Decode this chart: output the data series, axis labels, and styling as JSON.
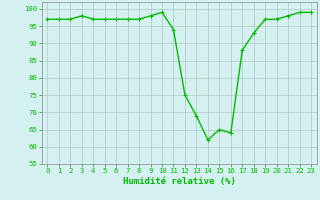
{
  "x": [
    0,
    1,
    2,
    3,
    4,
    5,
    6,
    7,
    8,
    9,
    10,
    11,
    12,
    13,
    14,
    15,
    16,
    17,
    18,
    19,
    20,
    21,
    22,
    23
  ],
  "y": [
    97,
    97,
    97,
    98,
    97,
    97,
    97,
    97,
    97,
    98,
    99,
    94,
    75,
    69,
    62,
    65,
    64,
    88,
    93,
    97,
    97,
    98,
    99,
    99
  ],
  "line_color": "#00bb00",
  "marker": "+",
  "marker_color": "#00bb00",
  "bg_color": "#d4f0f0",
  "grid_color": "#b0c8c8",
  "tick_color": "#00bb00",
  "xlabel": "Humidité relative (%)",
  "xlabel_color": "#00bb00",
  "ylim": [
    55,
    102
  ],
  "xlim": [
    -0.5,
    23.5
  ],
  "yticks": [
    55,
    60,
    65,
    70,
    75,
    80,
    85,
    90,
    95,
    100
  ],
  "xticks": [
    0,
    1,
    2,
    3,
    4,
    5,
    6,
    7,
    8,
    9,
    10,
    11,
    12,
    13,
    14,
    15,
    16,
    17,
    18,
    19,
    20,
    21,
    22,
    23
  ],
  "tick_fontsize": 5.2,
  "xlabel_fontsize": 6.5,
  "linewidth": 1.0,
  "markersize": 3.5,
  "spine_color": "#888888"
}
